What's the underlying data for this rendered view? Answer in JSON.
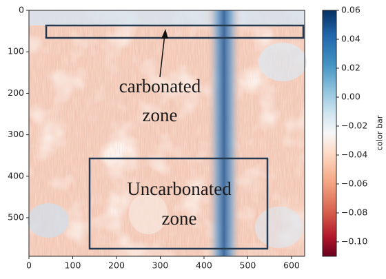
{
  "chart_data": {
    "type": "heatmap",
    "xlim": [
      0,
      630
    ],
    "xticks": [
      0,
      100,
      200,
      300,
      400,
      500,
      600
    ],
    "ylim": [
      0,
      593
    ],
    "yticks": [
      0,
      100,
      200,
      300,
      400,
      500
    ],
    "y_inverted": true,
    "clim": [
      -0.11,
      0.06
    ],
    "cticks": [
      {
        "value": 0.06,
        "label": "0.06"
      },
      {
        "value": 0.04,
        "label": "0.04"
      },
      {
        "value": 0.02,
        "label": "0.02"
      },
      {
        "value": 0,
        "label": "0.00"
      },
      {
        "value": -0.02,
        "label": "−0.02"
      },
      {
        "value": -0.04,
        "label": "−0.04"
      },
      {
        "value": -0.06,
        "label": "−0.06"
      },
      {
        "value": -0.08,
        "label": "−0.08"
      },
      {
        "value": -0.1,
        "label": "−0.10"
      }
    ],
    "colorbar_label": "color bar",
    "colormap": "RdBu",
    "annotations": [
      {
        "lines": [
          "carbonated",
          "zone"
        ]
      },
      {
        "lines": [
          "Uncarbonated",
          "zone"
        ]
      }
    ]
  }
}
